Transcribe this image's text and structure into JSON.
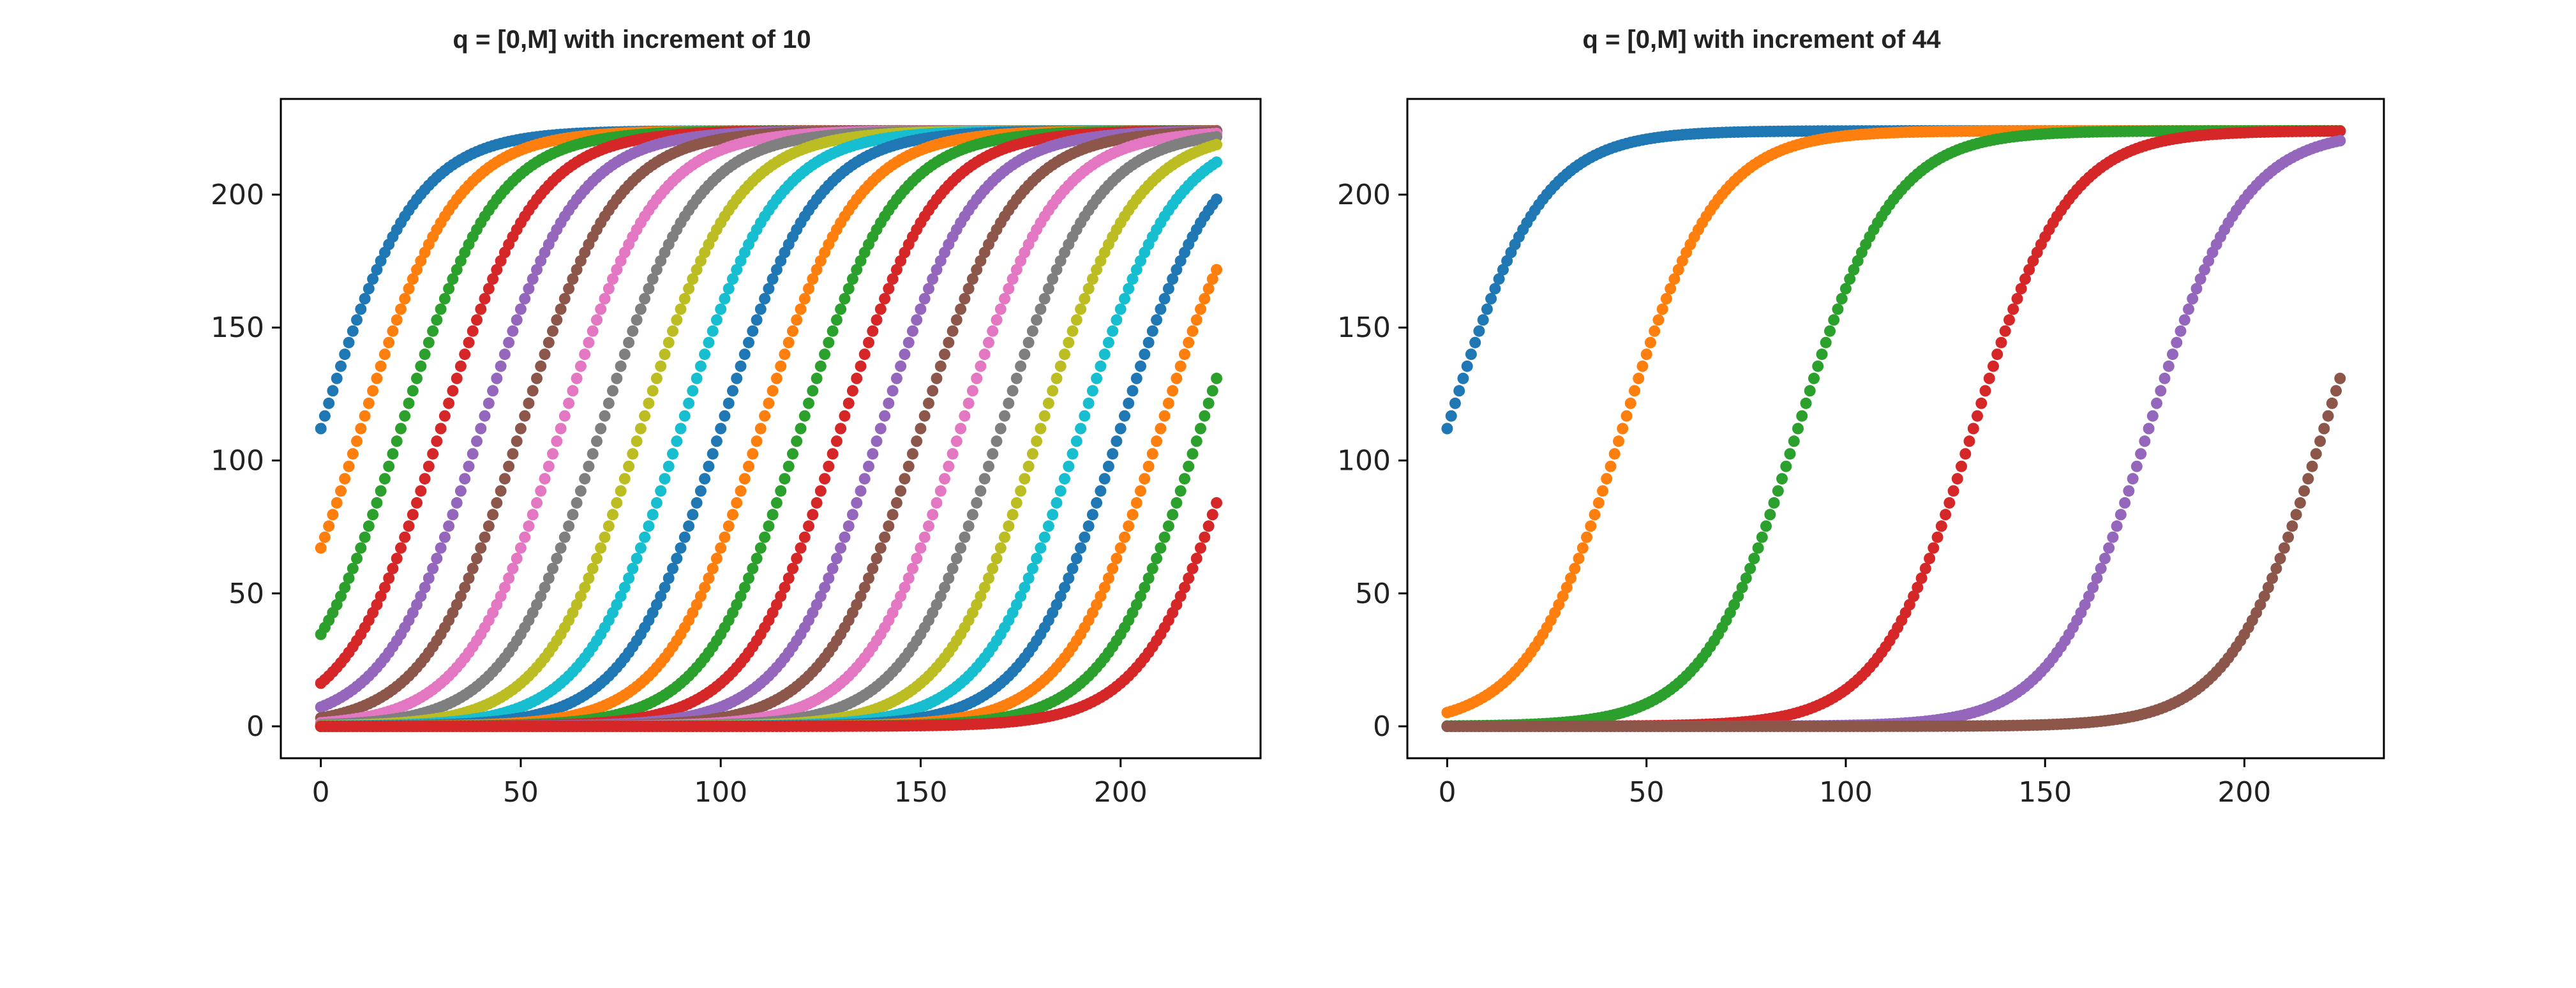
{
  "chart_data": [
    {
      "type": "scatter",
      "title": "q = [0,M] with increment of 10",
      "xlabel": "",
      "ylabel": "",
      "xlim": [
        -10,
        235
      ],
      "ylim": [
        -12,
        236
      ],
      "x_ticks": [
        0,
        50,
        100,
        150,
        200
      ],
      "y_ticks": [
        0,
        50,
        100,
        150,
        200
      ],
      "x_range": [
        0,
        224
      ],
      "grid": false,
      "series_midpoints": [
        0,
        10,
        20,
        30,
        40,
        50,
        60,
        70,
        80,
        90,
        100,
        110,
        120,
        130,
        140,
        150,
        160,
        170,
        180,
        190,
        200,
        210,
        220,
        230
      ],
      "series_colors": [
        "#1f77b4",
        "#ff7f0e",
        "#2ca02c",
        "#d62728",
        "#9467bd",
        "#8c564b",
        "#e377c2",
        "#7f7f7f",
        "#bcbd22",
        "#17becf"
      ]
    },
    {
      "type": "scatter",
      "title": "q = [0,M] with increment of 44",
      "xlabel": "",
      "ylabel": "",
      "xlim": [
        -10,
        235
      ],
      "ylim": [
        -12,
        236
      ],
      "x_ticks": [
        0,
        50,
        100,
        150,
        200
      ],
      "y_ticks": [
        0,
        50,
        100,
        150,
        200
      ],
      "x_range": [
        0,
        224
      ],
      "grid": false,
      "series_midpoints": [
        0,
        44,
        88,
        132,
        176,
        220
      ],
      "series_colors": [
        "#1f77b4",
        "#ff7f0e",
        "#2ca02c",
        "#d62728",
        "#9467bd",
        "#8c564b"
      ]
    }
  ],
  "curve_max": 224,
  "curve_steepness": 0.085,
  "icons": {
    "marker": "dot-marker"
  }
}
